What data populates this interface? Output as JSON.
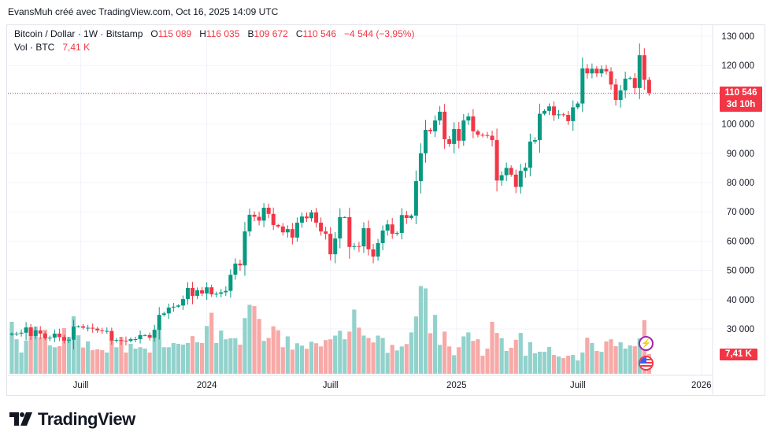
{
  "credit": "EvansMuh créé avec TradingView.com, Oct 16, 2025 14:09 UTC",
  "legend": {
    "symbol": "Bitcoin / Dollar · 1W · Bitstamp",
    "o_label": "O",
    "o_value": "115 089",
    "h_label": "H",
    "h_value": "116 035",
    "b_label": "B",
    "b_value": "109 672",
    "c_label": "C",
    "c_value": "110 546",
    "change": "−4 544 (−3,95%)",
    "vol_label": "Vol · BTC",
    "vol_value": "7,41 K"
  },
  "price_tag": {
    "price": "110 546",
    "countdown": "3d 10h"
  },
  "vol_tag": "7,41 K",
  "logo": "TradingView",
  "colors": {
    "up": "#089981",
    "down": "#f23645",
    "vol_up": "#92d2cc",
    "vol_down": "#f7a9a7",
    "grid": "#f0f3fa"
  },
  "icons": [
    "lightning-event-icon",
    "us-flag-event-icon",
    "tradingview-logo-icon"
  ],
  "chart_data": {
    "type": "candlestick",
    "title": "Bitcoin / Dollar · 1W · Bitstamp",
    "ylim": [
      25000,
      135000
    ],
    "y_ticks": [
      30000,
      40000,
      50000,
      60000,
      70000,
      80000,
      90000,
      100000,
      110000,
      120000,
      130000
    ],
    "y_tick_labels": [
      "30 000",
      "40 000",
      "50 000",
      "60 000",
      "70 000",
      "80 000",
      "90 000",
      "100 000",
      "110 000",
      "120 000",
      "130 000"
    ],
    "x_tick_labels": [
      {
        "label": "Juill",
        "week": 14.5
      },
      {
        "label": "2024",
        "week": 41
      },
      {
        "label": "Juill",
        "week": 67
      },
      {
        "label": "2025",
        "week": 93.5
      },
      {
        "label": "Juill",
        "week": 119
      },
      {
        "label": "2026",
        "week": 145
      }
    ],
    "first_open": 28.0,
    "closes_k": [
      28.4,
      28.4,
      28.7,
      30.5,
      27.6,
      29.5,
      28.4,
      26.8,
      27.0,
      28.4,
      27.2,
      26.0,
      26.3,
      30.8,
      30.9,
      30.4,
      30.4,
      30.1,
      29.5,
      29.3,
      29.3,
      26.0,
      26.2,
      26.0,
      25.9,
      26.5,
      26.5,
      27.9,
      27.9,
      27.0,
      29.7,
      34.8,
      35.3,
      37.3,
      37.6,
      38.0,
      40.2,
      44.0,
      41.3,
      43.2,
      42.1,
      44.2,
      41.8,
      42.0,
      42.5,
      43.0,
      48.5,
      52.3,
      51.7,
      63.3,
      69.0,
      68.3,
      67.0,
      71.4,
      69.3,
      65.5,
      65.0,
      63.0,
      64.1,
      61.2,
      66.3,
      68.4,
      67.8,
      69.8,
      66.3,
      63.3,
      62.5,
      55.5,
      60.9,
      68.2,
      68.2,
      58.0,
      58.3,
      58.2,
      64.4,
      57.2,
      54.7,
      59.3,
      63.6,
      65.7,
      62.5,
      62.8,
      68.9,
      67.9,
      68.7,
      80.5,
      90.0,
      98.0,
      97.5,
      101.2,
      104.2,
      94.8,
      93.2,
      98.3,
      94.3,
      101.2,
      102.6,
      97.5,
      96.3,
      96.2,
      96.0,
      94.5,
      80.7,
      82.5,
      85.0,
      82.7,
      78.5,
      84.0,
      85.1,
      94.0,
      94.5,
      103.5,
      104.5,
      106.0,
      103.0,
      103.3,
      103.1,
      101.0,
      105.7,
      107.0,
      119.0,
      117.3,
      118.9,
      117.3,
      118.8,
      118.0,
      113.5,
      108.2,
      111.5,
      115.5,
      115.7,
      112.3,
      123.5,
      115.089,
      110.546
    ],
    "last_candle": {
      "open": 115089,
      "high": 116035,
      "low": 109672,
      "close": 110546
    },
    "volume_k": [
      19.6,
      13,
      8,
      12.5,
      17.6,
      17.8,
      13.7,
      16.6,
      10.7,
      10,
      10.4,
      17.2,
      13.9,
      21.7,
      14.5,
      9.9,
      12.2,
      8.9,
      9.2,
      8.9,
      8,
      12.8,
      10,
      13.9,
      8,
      11.3,
      9.5,
      10,
      9.5,
      8,
      13.7,
      16.9,
      10,
      10,
      11.6,
      11.3,
      11,
      11.6,
      14.2,
      11.9,
      11.6,
      18,
      23,
      11.6,
      16.3,
      13,
      13.4,
      13.4,
      11,
      21,
      26,
      25.5,
      20.7,
      12.4,
      13.5,
      17.9,
      16.4,
      10,
      14.1,
      9.1,
      11.5,
      10.6,
      9.4,
      12.1,
      11.5,
      10.3,
      12.7,
      13,
      14.4,
      16.2,
      13,
      15.9,
      24.2,
      17.4,
      14.4,
      13.5,
      11.8,
      14.4,
      13.5,
      7.9,
      10.9,
      8.8,
      10.3,
      11.2,
      15.6,
      21.6,
      33.1,
      32.2,
      15.3,
      22.2,
      10.9,
      15.9,
      10.3,
      7,
      10,
      14.1,
      15.6,
      12.4,
      13,
      6.8,
      9.5,
      19.6,
      15.4,
      13.4,
      8.6,
      9.8,
      12.8,
      15.4,
      6.8,
      11.9,
      7.7,
      8.3,
      8.3,
      10.1,
      7.1,
      6.5,
      5.9,
      6.8,
      7.1,
      5,
      8,
      13.6,
      11.6,
      8.6,
      8.3,
      12.2,
      13,
      10.4,
      11.9,
      9.5,
      10.7,
      10.4,
      13.4,
      20.2,
      7.41
    ],
    "current_price": 110546,
    "volume_unit": "K BTC"
  }
}
